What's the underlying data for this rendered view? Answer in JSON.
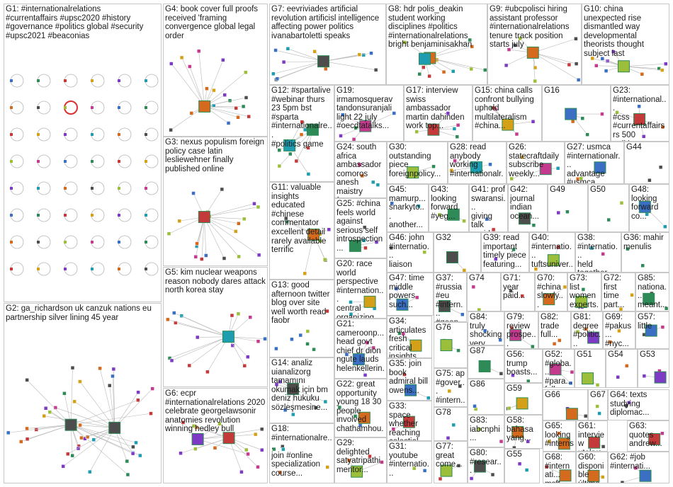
{
  "groups": [
    {
      "id": "G1",
      "label": "G1: #internationalrelations\n#currentaffairs #upsc2020 #history\n#governance #politics global #security\n#upsc2021 #beaconias"
    },
    {
      "id": "G2",
      "label": "G2: ga_richardson uk canzuk nations eu\npartnership silver lining 45 year"
    },
    {
      "id": "G3",
      "label": "G3: nexus populism foreign\npolicy case latin\nlesliewehner finally\npublished online"
    },
    {
      "id": "G4",
      "label": "G4: book cover full proofs\nreceived 'framing\nconvergence global legal\norder"
    },
    {
      "id": "G5",
      "label": "G5: kim nuclear weapons\nreason nobody dares attack\nnorth korea stay"
    },
    {
      "id": "G6",
      "label": "G6: ecpr\n#internationalrelations 2020\ncelebrate georgelawsonir\nanatomies revolution\nwinning hedley bull"
    },
    {
      "id": "G7",
      "label": "G7: eevriviades artificial\nrevolution artificisl intelligence\naffecting power politics\nivanabartoletti speaks"
    },
    {
      "id": "G8",
      "label": "G8: hdr polis_deakin\nstudent working\ndisciplines #politics\n#internationalrelations\nbright benjaminisakhan"
    },
    {
      "id": "G9",
      "label": "G9: #ubcpolisci hiring\nassistant professor\n#internationalrelations\ntenure track position\nstarts july"
    },
    {
      "id": "G10",
      "label": "G10: china\nunexpected rise\ndismantled way\ndevelopmental\ntheorists thought\nsubject last"
    },
    {
      "id": "G11",
      "label": "G11: valuable\ninsights\neducated\n#chinese\ncommentator\nexcellent detail\nrarely available\nterrific"
    },
    {
      "id": "G12",
      "label": "G12: #spartalive\n#webinar thurs\n23 5pm bst\n#sparta\n#internationalre...\n#politics game"
    },
    {
      "id": "G13",
      "label": "G13: good\nafternoon twitter\nblog over site\nwell worth read\nfaobr"
    },
    {
      "id": "G14",
      "label": "G14: analiz\nuianalizorg\ntamamını\nokumak için bm\ndeniz hukuku\nsözleşmesine..."
    },
    {
      "id": "G15",
      "label": "G15: china calls\nconfront bullying\nuphold\nmultilateralism\n#china..."
    },
    {
      "id": "G16",
      "label": "G16"
    },
    {
      "id": "G17",
      "label": "G17: interview\nswiss\nambassador\nmartin dahinden\nwork top..."
    },
    {
      "id": "G18",
      "label": "G18:\n#internationalre...\njoin #online\nspecialization\ncourse..."
    },
    {
      "id": "G19",
      "label": "G19:\nirmamosquerav\ntandonsuranjali\nlight 22 july\n#oecdtatalks..."
    },
    {
      "id": "G20",
      "label": "G20: race\nworld\nperspective\n#internation...\ncentral\norganizing..."
    },
    {
      "id": "G21",
      "label": "G21:\ncameroonp...\nhead govt\nchief dr dion\nngute lauds\nhelenkellerin..."
    },
    {
      "id": "G22",
      "label": "G22: great\nopportunity\nyoung 18 30\npeople\ninvolved\nchathamhou..."
    },
    {
      "id": "G23",
      "label": "G23:\n#international...\n#css\n#currentaffairs\nrs 500 politics..."
    },
    {
      "id": "G24",
      "label": "G24: south\nafrica\nambassador\ncomoros\nanesh maistry\nfeature..."
    },
    {
      "id": "G25",
      "label": "G25: #china\nfeels world\nagainst\nserious self\nintrospection..."
    },
    {
      "id": "G26",
      "label": "G26:\nstatecraftdaily\nsubscribe\nweekly..."
    },
    {
      "id": "G27",
      "label": "G27: usmca\n#internationalr...\nadvantage\n#usmca..."
    },
    {
      "id": "G28",
      "label": "G28: read\nanybody\nworking\n#internationalr..."
    },
    {
      "id": "G29",
      "label": "G29:\ndelighted\nsatyatripathi\nmentor..."
    },
    {
      "id": "G30",
      "label": "G30:\noutstanding\npiece\nforeignpolicy..."
    },
    {
      "id": "G31",
      "label": "G31:\nyoutube\n#internatio..."
    },
    {
      "id": "G32",
      "label": "G32"
    },
    {
      "id": "G33",
      "label": "G33: space\nwhether\nreaching\ncelestial..."
    },
    {
      "id": "G34",
      "label": "G34:\narticulates\nfresh critical\ninsights..."
    },
    {
      "id": "G35",
      "label": "G35: join\nbook\nadmiral bill\nowens..."
    },
    {
      "id": "G36",
      "label": "G36: mahir\nmenulis"
    },
    {
      "id": "G37",
      "label": "G37:\n#russia\n#eu\n#intern...\n#geop..."
    },
    {
      "id": "G38",
      "label": "G38:\n#internatio...\nheld\ntogether..."
    },
    {
      "id": "G39",
      "label": "G39: read\nimportant\ntimely piece\nfeaturing..."
    },
    {
      "id": "G40",
      "label": "G40:\n#internatio...\ntuftsuniver..."
    },
    {
      "id": "G41",
      "label": "G41: prof\nswaransi...\ngiving talk\ncovid 19..."
    },
    {
      "id": "G42",
      "label": "G42:\njournal\nindian\nocean..."
    },
    {
      "id": "G43",
      "label": "G43:\nlooking\nforward\n#yeg..."
    },
    {
      "id": "G44",
      "label": "G44"
    },
    {
      "id": "G45",
      "label": "G45:\nmamurp...\nsnarkyto...\nanother..."
    },
    {
      "id": "G46",
      "label": "G46: john\n#internatio...\nliaison"
    },
    {
      "id": "G47",
      "label": "G47: time\nmiddle\npowers\nsuch..."
    },
    {
      "id": "G48",
      "label": "G48:\nlooking\nforward\nco..."
    },
    {
      "id": "G49",
      "label": "G49"
    },
    {
      "id": "G50",
      "label": "G50"
    },
    {
      "id": "G51",
      "label": "G51"
    },
    {
      "id": "G52",
      "label": "G52:\n#globa...\n#para...\nfollow..."
    },
    {
      "id": "G53",
      "label": "G53"
    },
    {
      "id": "G54",
      "label": "G54"
    },
    {
      "id": "G55",
      "label": "G55"
    },
    {
      "id": "G56",
      "label": "G56:\ntrump\nboasts..."
    },
    {
      "id": "G57",
      "label": "G57:\nlittle"
    },
    {
      "id": "G58",
      "label": "G58:\nbahasa\nyang..."
    },
    {
      "id": "G59",
      "label": "G59"
    },
    {
      "id": "G60",
      "label": "G60:\ndisponible\núltimo..."
    },
    {
      "id": "G61",
      "label": "G61:\ninterview\nutokyo..."
    },
    {
      "id": "G62",
      "label": "G62: #job\n#internati..."
    },
    {
      "id": "G63",
      "label": "G63:\nquotes\nandrew..."
    },
    {
      "id": "G64",
      "label": "G64: texts\nstudying\ndiplomac..."
    },
    {
      "id": "G65",
      "label": "G65:\nlooking\n#interns..."
    },
    {
      "id": "G66",
      "label": "G66"
    },
    {
      "id": "G67",
      "label": "G67"
    },
    {
      "id": "G68",
      "label": "G68:\n#internati...\nmsft..."
    },
    {
      "id": "G69",
      "label": "G69:\n#pakus...\n#nyc..."
    },
    {
      "id": "G70",
      "label": "G70:\n#china\nslowly..."
    },
    {
      "id": "G71",
      "label": "G71:\nyear\npaid..."
    },
    {
      "id": "G72",
      "label": "G72:\nfirst time\npart..."
    },
    {
      "id": "G73",
      "label": "G73: list\nwomen\nexperts..."
    },
    {
      "id": "G74",
      "label": "G74"
    },
    {
      "id": "G75",
      "label": "G75: ap\n#gover...\n#intern..."
    },
    {
      "id": "G76",
      "label": "G76"
    },
    {
      "id": "G77",
      "label": "G77:\ngreat\ncome..."
    },
    {
      "id": "G78",
      "label": "G78"
    },
    {
      "id": "G79",
      "label": "G79:\nreview\nprospe..."
    },
    {
      "id": "G80",
      "label": "G80:\n#resear..."
    },
    {
      "id": "G81",
      "label": "G81:\ndegree\n#politic..."
    },
    {
      "id": "G82",
      "label": "G82:\ntrade\nfull..."
    },
    {
      "id": "G83",
      "label": "G83:\niabcnphi..."
    },
    {
      "id": "G84",
      "label": "G84: truly\nshocking\nvery..."
    },
    {
      "id": "G85",
      "label": "G85:\nnationa...\nmeant..."
    },
    {
      "id": "G86",
      "label": "G86"
    },
    {
      "id": "G87",
      "label": "G87"
    }
  ]
}
